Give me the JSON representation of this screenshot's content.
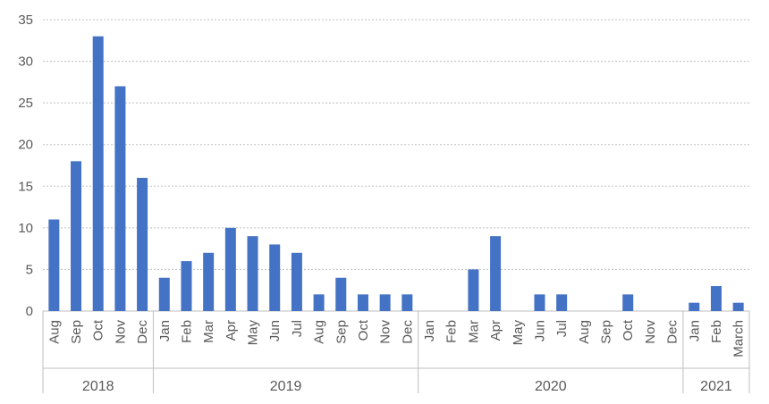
{
  "chart_data": {
    "type": "bar",
    "title": "",
    "xlabel": "",
    "ylabel": "",
    "ylim": [
      0,
      35
    ],
    "yticks": [
      0,
      5,
      10,
      15,
      20,
      25,
      30,
      35
    ],
    "grid": "horizontal dotted",
    "legend": "none",
    "bar_color": "#4472c4",
    "groups": [
      {
        "year": "2018",
        "months": [
          "Aug",
          "Sep",
          "Oct",
          "Nov",
          "Dec"
        ]
      },
      {
        "year": "2019",
        "months": [
          "Jan",
          "Feb",
          "Mar",
          "Apr",
          "May",
          "Jun",
          "Jul",
          "Aug",
          "Sep",
          "Oct",
          "Nov",
          "Dec"
        ]
      },
      {
        "year": "2020",
        "months": [
          "Jan",
          "Feb",
          "Mar",
          "Apr",
          "May",
          "Jun",
          "Jul",
          "Aug",
          "Sep",
          "Oct",
          "Nov",
          "Dec"
        ]
      },
      {
        "year": "2021",
        "months": [
          "Jan",
          "Feb",
          "March"
        ]
      }
    ],
    "values": [
      11,
      18,
      33,
      27,
      16,
      4,
      6,
      7,
      10,
      9,
      8,
      7,
      2,
      4,
      2,
      2,
      2,
      0,
      0,
      5,
      9,
      0,
      2,
      2,
      0,
      0,
      2,
      0,
      0,
      1,
      3,
      1
    ]
  }
}
